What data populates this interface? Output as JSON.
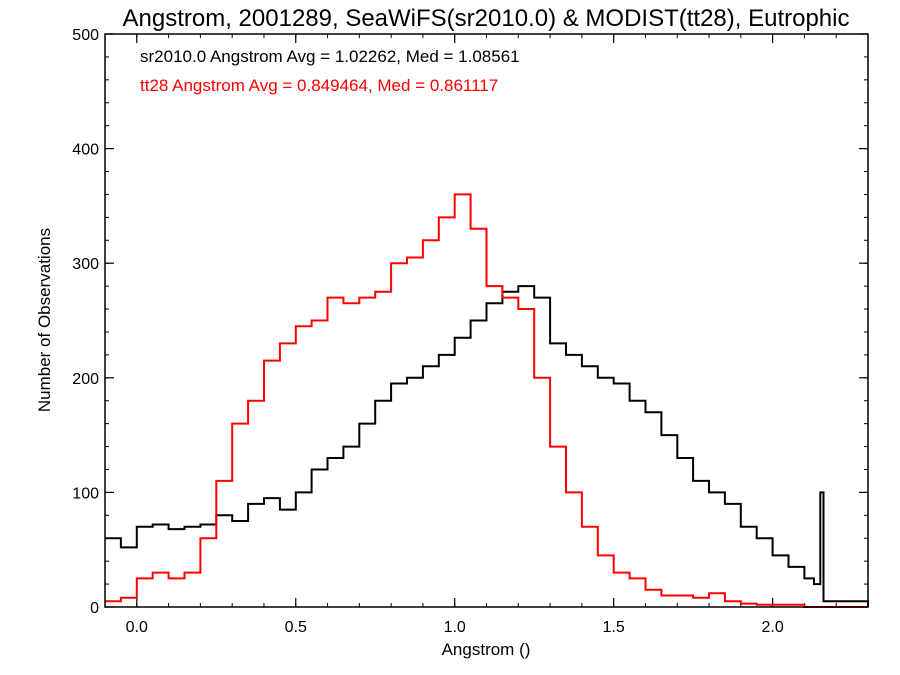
{
  "chart_data": {
    "type": "line",
    "title": "Angstrom, 2001289, SeaWiFS(sr2010.0) & MODIST(tt28), Eutrophic",
    "xlabel": "Angstrom ()",
    "ylabel": "Number of Observations",
    "xlim": [
      -0.1,
      2.3
    ],
    "ylim": [
      0,
      500
    ],
    "x_ticks": [
      0.0,
      0.5,
      1.0,
      1.5,
      2.0
    ],
    "x_tick_labels": [
      "0.0",
      "0.5",
      "1.0",
      "1.5",
      "2.0"
    ],
    "y_ticks": [
      0,
      100,
      200,
      300,
      400,
      500
    ],
    "y_tick_labels": [
      "0",
      "100",
      "200",
      "300",
      "400",
      "500"
    ],
    "grid": false,
    "annotations": [
      {
        "text": "sr2010.0 Angstrom Avg = 1.02262, Med = 1.08561",
        "color": "#000000"
      },
      {
        "text": "tt28 Angstrom Avg = 0.849464, Med = 0.861117",
        "color": "#ff0000"
      }
    ],
    "series": [
      {
        "color": "#000000",
        "x": [
          -0.1,
          -0.05,
          0.0,
          0.05,
          0.1,
          0.15,
          0.2,
          0.25,
          0.3,
          0.35,
          0.4,
          0.45,
          0.5,
          0.55,
          0.6,
          0.65,
          0.7,
          0.75,
          0.8,
          0.85,
          0.9,
          0.95,
          1.0,
          1.05,
          1.1,
          1.15,
          1.2,
          1.25,
          1.3,
          1.35,
          1.4,
          1.45,
          1.5,
          1.55,
          1.6,
          1.65,
          1.7,
          1.75,
          1.8,
          1.85,
          1.9,
          1.95,
          2.0,
          2.05,
          2.1,
          2.13,
          2.15,
          2.16,
          2.3
        ],
        "y": [
          60,
          52,
          70,
          72,
          68,
          70,
          72,
          80,
          75,
          90,
          95,
          85,
          100,
          120,
          130,
          140,
          160,
          180,
          195,
          200,
          210,
          220,
          235,
          250,
          265,
          275,
          280,
          270,
          230,
          220,
          210,
          200,
          195,
          180,
          170,
          150,
          130,
          110,
          100,
          90,
          70,
          60,
          45,
          35,
          25,
          20,
          100,
          5,
          0
        ]
      },
      {
        "color": "#ff0000",
        "x": [
          -0.1,
          -0.05,
          0.0,
          0.05,
          0.1,
          0.15,
          0.2,
          0.25,
          0.3,
          0.35,
          0.4,
          0.45,
          0.5,
          0.55,
          0.6,
          0.65,
          0.7,
          0.75,
          0.8,
          0.85,
          0.9,
          0.95,
          1.0,
          1.05,
          1.1,
          1.15,
          1.2,
          1.25,
          1.3,
          1.35,
          1.4,
          1.45,
          1.5,
          1.55,
          1.6,
          1.65,
          1.7,
          1.75,
          1.8,
          1.85,
          1.9,
          1.95,
          2.0,
          2.1,
          2.3
        ],
        "y": [
          5,
          8,
          25,
          30,
          25,
          30,
          60,
          110,
          160,
          180,
          215,
          230,
          245,
          250,
          270,
          265,
          270,
          275,
          300,
          305,
          320,
          340,
          360,
          330,
          280,
          270,
          260,
          200,
          140,
          100,
          70,
          45,
          30,
          25,
          15,
          10,
          10,
          8,
          12,
          5,
          3,
          2,
          2,
          0,
          0
        ]
      }
    ]
  }
}
